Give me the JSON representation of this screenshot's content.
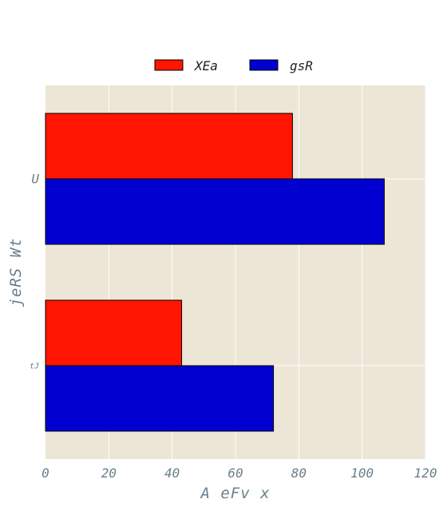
{
  "chart_data": {
    "type": "bar",
    "orientation": "horizontal",
    "title": "",
    "xlabel": "A eFv x",
    "ylabel": "jeRS  Wt",
    "categories": [
      "U",
      "tJ"
    ],
    "series": [
      {
        "name": "XEa",
        "color": "#ff1500",
        "values": [
          78,
          43
        ]
      },
      {
        "name": "gsR",
        "color": "#0000d0",
        "values": [
          107,
          72
        ]
      }
    ],
    "xlim": [
      0,
      120
    ],
    "xticks": [
      0,
      20,
      40,
      60,
      80,
      100,
      120
    ],
    "grid": true,
    "legend": "top-center",
    "plot_background": "#ede6d6",
    "grid_color": "#ffffff"
  }
}
